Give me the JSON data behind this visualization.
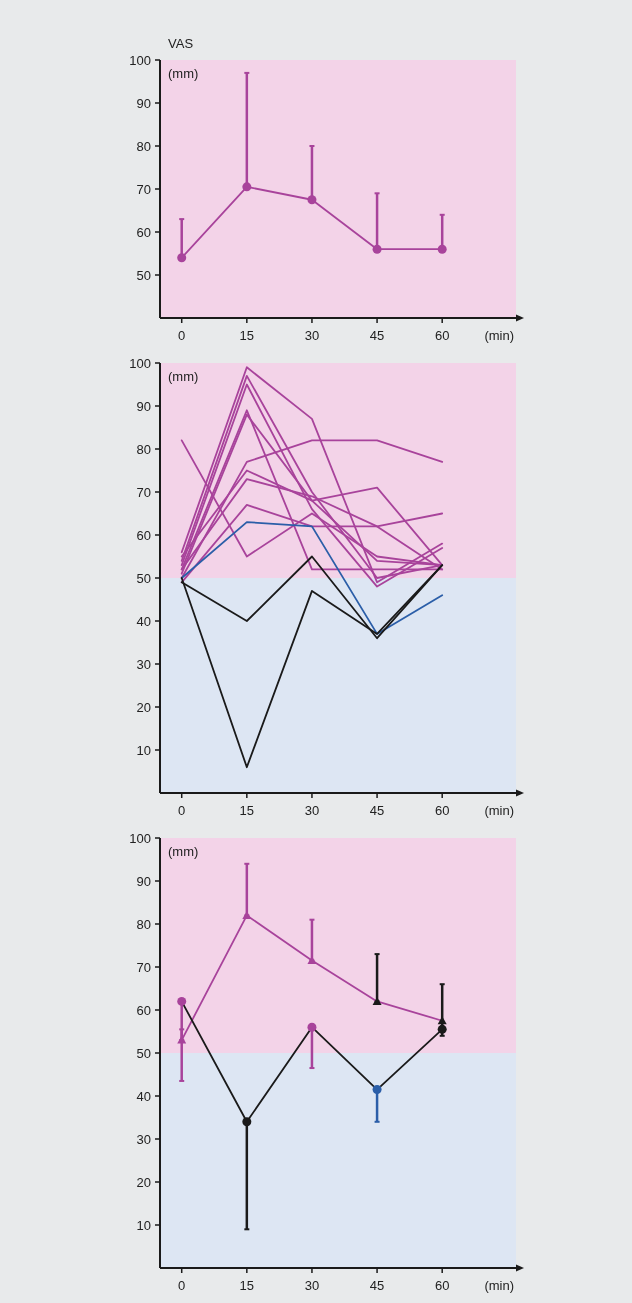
{
  "chart_data": [
    {
      "type": "line",
      "title": "VAS",
      "ylabel": "(mm)",
      "xlabel": "(min)",
      "x": [
        0,
        15,
        30,
        45,
        60
      ],
      "xlim": [
        -5,
        77
      ],
      "ylim": [
        40,
        100
      ],
      "xticks": [
        0,
        15,
        30,
        45,
        60
      ],
      "yticks": [
        50,
        60,
        70,
        80,
        90,
        100
      ],
      "marker": "circle",
      "grid": false,
      "bands": [
        {
          "axis": "y",
          "from": 40,
          "to": 100,
          "color": "#f3d3e8"
        }
      ],
      "series": [
        {
          "color": "#a8439b",
          "values": [
            54,
            70.5,
            67.5,
            56,
            56
          ],
          "errors": [
            [
              54,
              63
            ],
            [
              70.5,
              97
            ],
            [
              67.5,
              80
            ],
            [
              56,
              69
            ],
            [
              56,
              64
            ]
          ]
        }
      ]
    },
    {
      "type": "line",
      "ylabel": "(mm)",
      "xlabel": "(min)",
      "x": [
        0,
        15,
        30,
        45,
        60
      ],
      "xlim": [
        -5,
        77
      ],
      "ylim": [
        0,
        100
      ],
      "xticks": [
        0,
        15,
        30,
        45,
        60
      ],
      "yticks": [
        10,
        20,
        30,
        40,
        50,
        60,
        70,
        80,
        90,
        100
      ],
      "marker": "none",
      "grid": false,
      "bands": [
        {
          "axis": "y",
          "from": 50,
          "to": 100,
          "color": "#f3d3e8"
        },
        {
          "axis": "y",
          "from": 0,
          "to": 50,
          "color": "#dde6f3"
        }
      ],
      "series": [
        {
          "color": "#a8439b",
          "values": [
            56,
            99,
            87,
            49,
            58
          ]
        },
        {
          "color": "#a8439b",
          "values": [
            54,
            97,
            70,
            50,
            53
          ]
        },
        {
          "color": "#a8439b",
          "values": [
            53,
            95,
            66,
            48,
            57
          ]
        },
        {
          "color": "#a8439b",
          "values": [
            52,
            89,
            52,
            52,
            52
          ]
        },
        {
          "color": "#a8439b",
          "values": [
            51,
            88,
            68,
            54,
            53
          ]
        },
        {
          "color": "#a8439b",
          "values": [
            50,
            77,
            82,
            82,
            77
          ]
        },
        {
          "color": "#a8439b",
          "values": [
            55,
            75,
            68,
            71,
            53
          ]
        },
        {
          "color": "#a8439b",
          "values": [
            52,
            73,
            69,
            62,
            65
          ]
        },
        {
          "color": "#a8439b",
          "values": [
            49,
            67,
            62,
            62,
            52
          ]
        },
        {
          "color": "#a8439b",
          "values": [
            82,
            55,
            65,
            55,
            53
          ]
        },
        {
          "color": "#2b5ea8",
          "values": [
            50,
            63,
            62,
            37,
            46
          ]
        },
        {
          "color": "#1a1a1a",
          "values": [
            49,
            40,
            55,
            36,
            53
          ]
        },
        {
          "color": "#1a1a1a",
          "values": [
            50,
            6,
            47,
            37,
            53
          ]
        }
      ]
    },
    {
      "type": "line",
      "ylabel": "(mm)",
      "xlabel": "(min)",
      "x": [
        0,
        15,
        30,
        45,
        60
      ],
      "xlim": [
        -5,
        77
      ],
      "ylim": [
        0,
        100
      ],
      "xticks": [
        0,
        15,
        30,
        45,
        60
      ],
      "yticks": [
        10,
        20,
        30,
        40,
        50,
        60,
        70,
        80,
        90,
        100
      ],
      "grid": false,
      "bands": [
        {
          "axis": "y",
          "from": 50,
          "to": 100,
          "color": "#f3d3e8"
        },
        {
          "axis": "y",
          "from": 0,
          "to": 50,
          "color": "#dde6f3"
        }
      ],
      "series": [
        {
          "color": "#a8439b",
          "marker": "triangle",
          "colors": [
            "#a8439b",
            "#a8439b",
            "#a8439b",
            "#1a1a1a",
            "#1a1a1a"
          ],
          "values": [
            53,
            82,
            71.5,
            62,
            57.5
          ],
          "errors": [
            [
              53,
              55.5
            ],
            [
              82,
              94
            ],
            [
              71.5,
              81
            ],
            [
              62,
              73
            ],
            [
              54,
              66
            ]
          ]
        },
        {
          "color": "#1a1a1a",
          "marker": "circle",
          "colors": [
            "#a8439b",
            "#1a1a1a",
            "#a8439b",
            "#2b5ea8",
            "#1a1a1a"
          ],
          "values": [
            62,
            34,
            56,
            41.5,
            55.5
          ],
          "errors": [
            [
              43.5,
              62
            ],
            [
              9,
              34
            ],
            [
              46.5,
              56
            ],
            [
              34,
              41.5
            ],
            null
          ]
        }
      ]
    }
  ]
}
